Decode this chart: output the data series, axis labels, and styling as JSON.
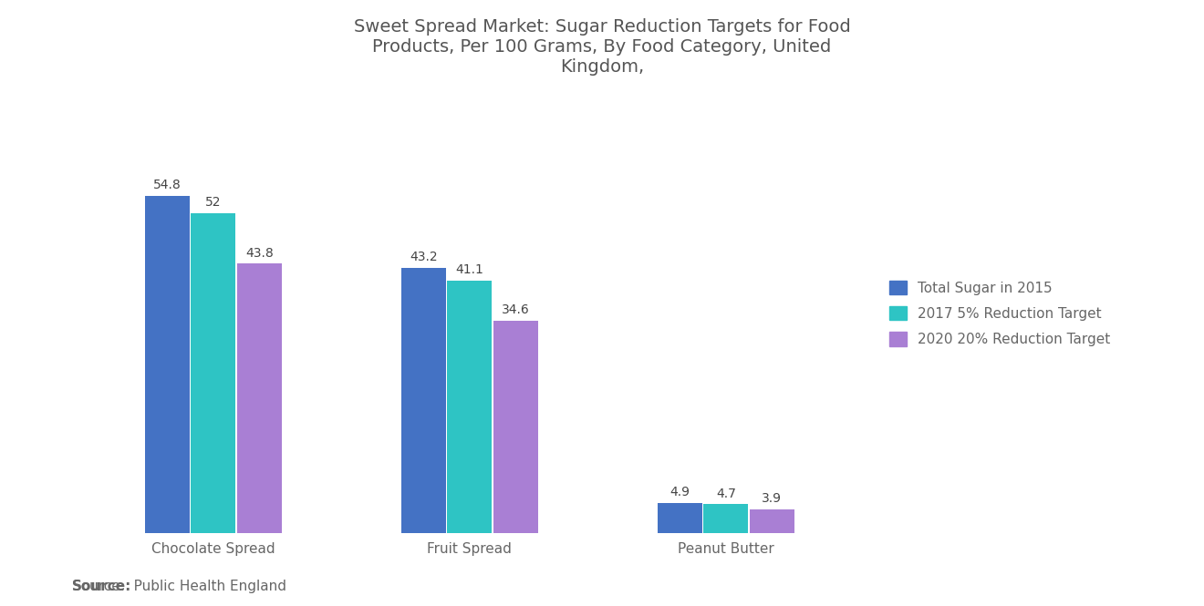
{
  "title": "Sweet Spread Market: Sugar Reduction Targets for Food\nProducts, Per 100 Grams, By Food Category, United\nKingdom,",
  "categories": [
    "Chocolate Spread",
    "Fruit Spread",
    "Peanut Butter"
  ],
  "series": [
    {
      "label": "Total Sugar in 2015",
      "color": "#4472C4",
      "values": [
        54.8,
        43.2,
        4.9
      ],
      "labels": [
        "54.8",
        "43.2",
        "4.9"
      ]
    },
    {
      "label": "2017 5% Reduction Target",
      "color": "#2EC4C4",
      "values": [
        52.0,
        41.1,
        4.7
      ],
      "labels": [
        "52",
        "41.1",
        "4.7"
      ]
    },
    {
      "label": "2020 20% Reduction Target",
      "color": "#A97FD4",
      "values": [
        43.8,
        34.6,
        3.9
      ],
      "labels": [
        "43.8",
        "34.6",
        "3.9"
      ]
    }
  ],
  "source": "Public Health England",
  "ylim": [
    0,
    65
  ],
  "bar_width": 0.18,
  "bg_color": "#FFFFFF",
  "title_color": "#555555",
  "label_color": "#666666",
  "value_color": "#444444",
  "title_fontsize": 14,
  "legend_fontsize": 11,
  "source_fontsize": 11,
  "tick_fontsize": 11,
  "value_fontsize": 10
}
